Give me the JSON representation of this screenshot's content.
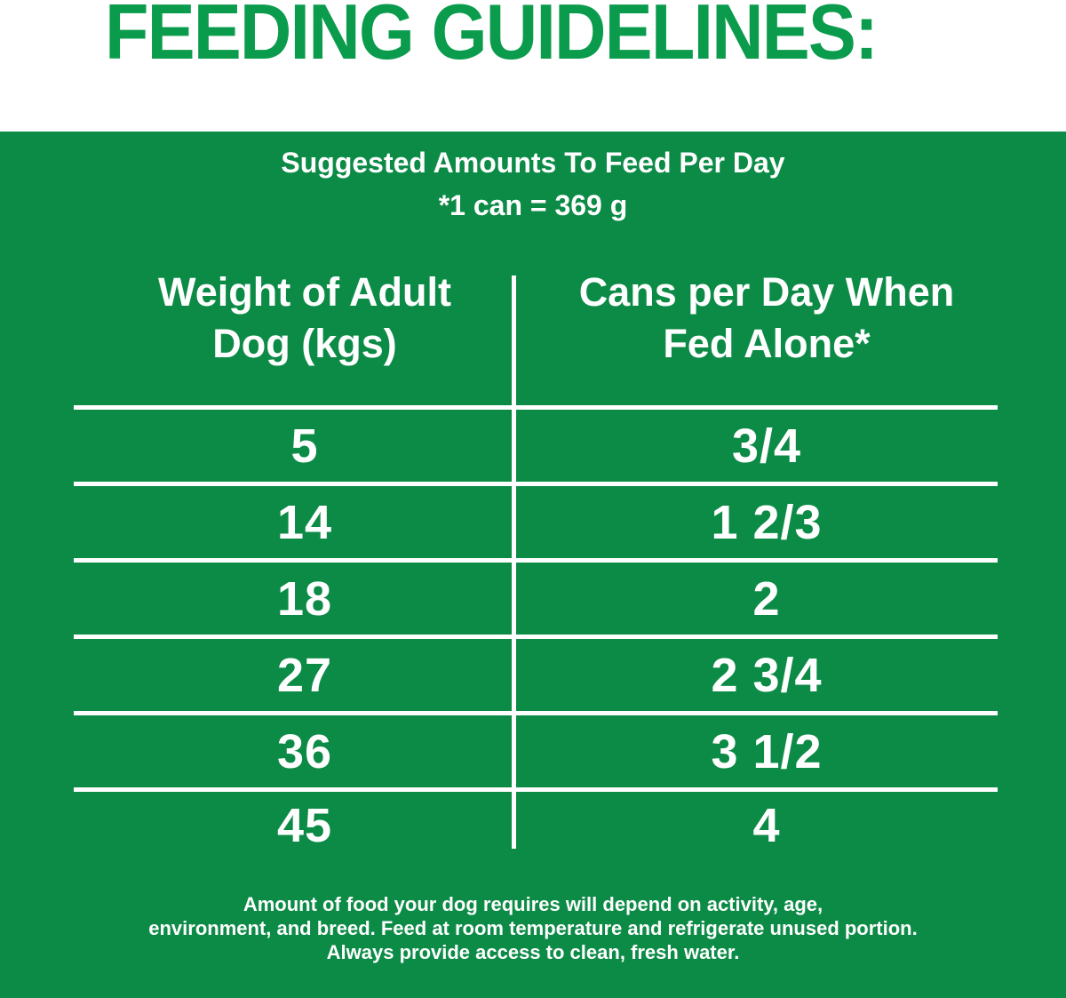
{
  "title": "FEEDING GUIDELINES:",
  "colors": {
    "title_green": "#0a9c4c",
    "panel_green": "#0c8b46",
    "text_white": "#ffffff"
  },
  "panel": {
    "subtitle": "Suggested Amounts To Feed Per Day",
    "can_note": "*1 can = 369 g",
    "table": {
      "header_left": "Weight of Adult\nDog (kgs)",
      "header_right": "Cans per Day When\nFed Alone*",
      "rows": [
        {
          "weight": "5",
          "cans": "3/4"
        },
        {
          "weight": "14",
          "cans": "1 2/3"
        },
        {
          "weight": "18",
          "cans": "2"
        },
        {
          "weight": "27",
          "cans": "2 3/4"
        },
        {
          "weight": "36",
          "cans": "3 1/2"
        },
        {
          "weight": "45",
          "cans": "4"
        }
      ]
    },
    "footnote": "Amount of food your dog requires will depend on activity, age,\nenvironment, and breed. Feed at room temperature and refrigerate unused portion.\nAlways provide access to clean, fresh water."
  }
}
